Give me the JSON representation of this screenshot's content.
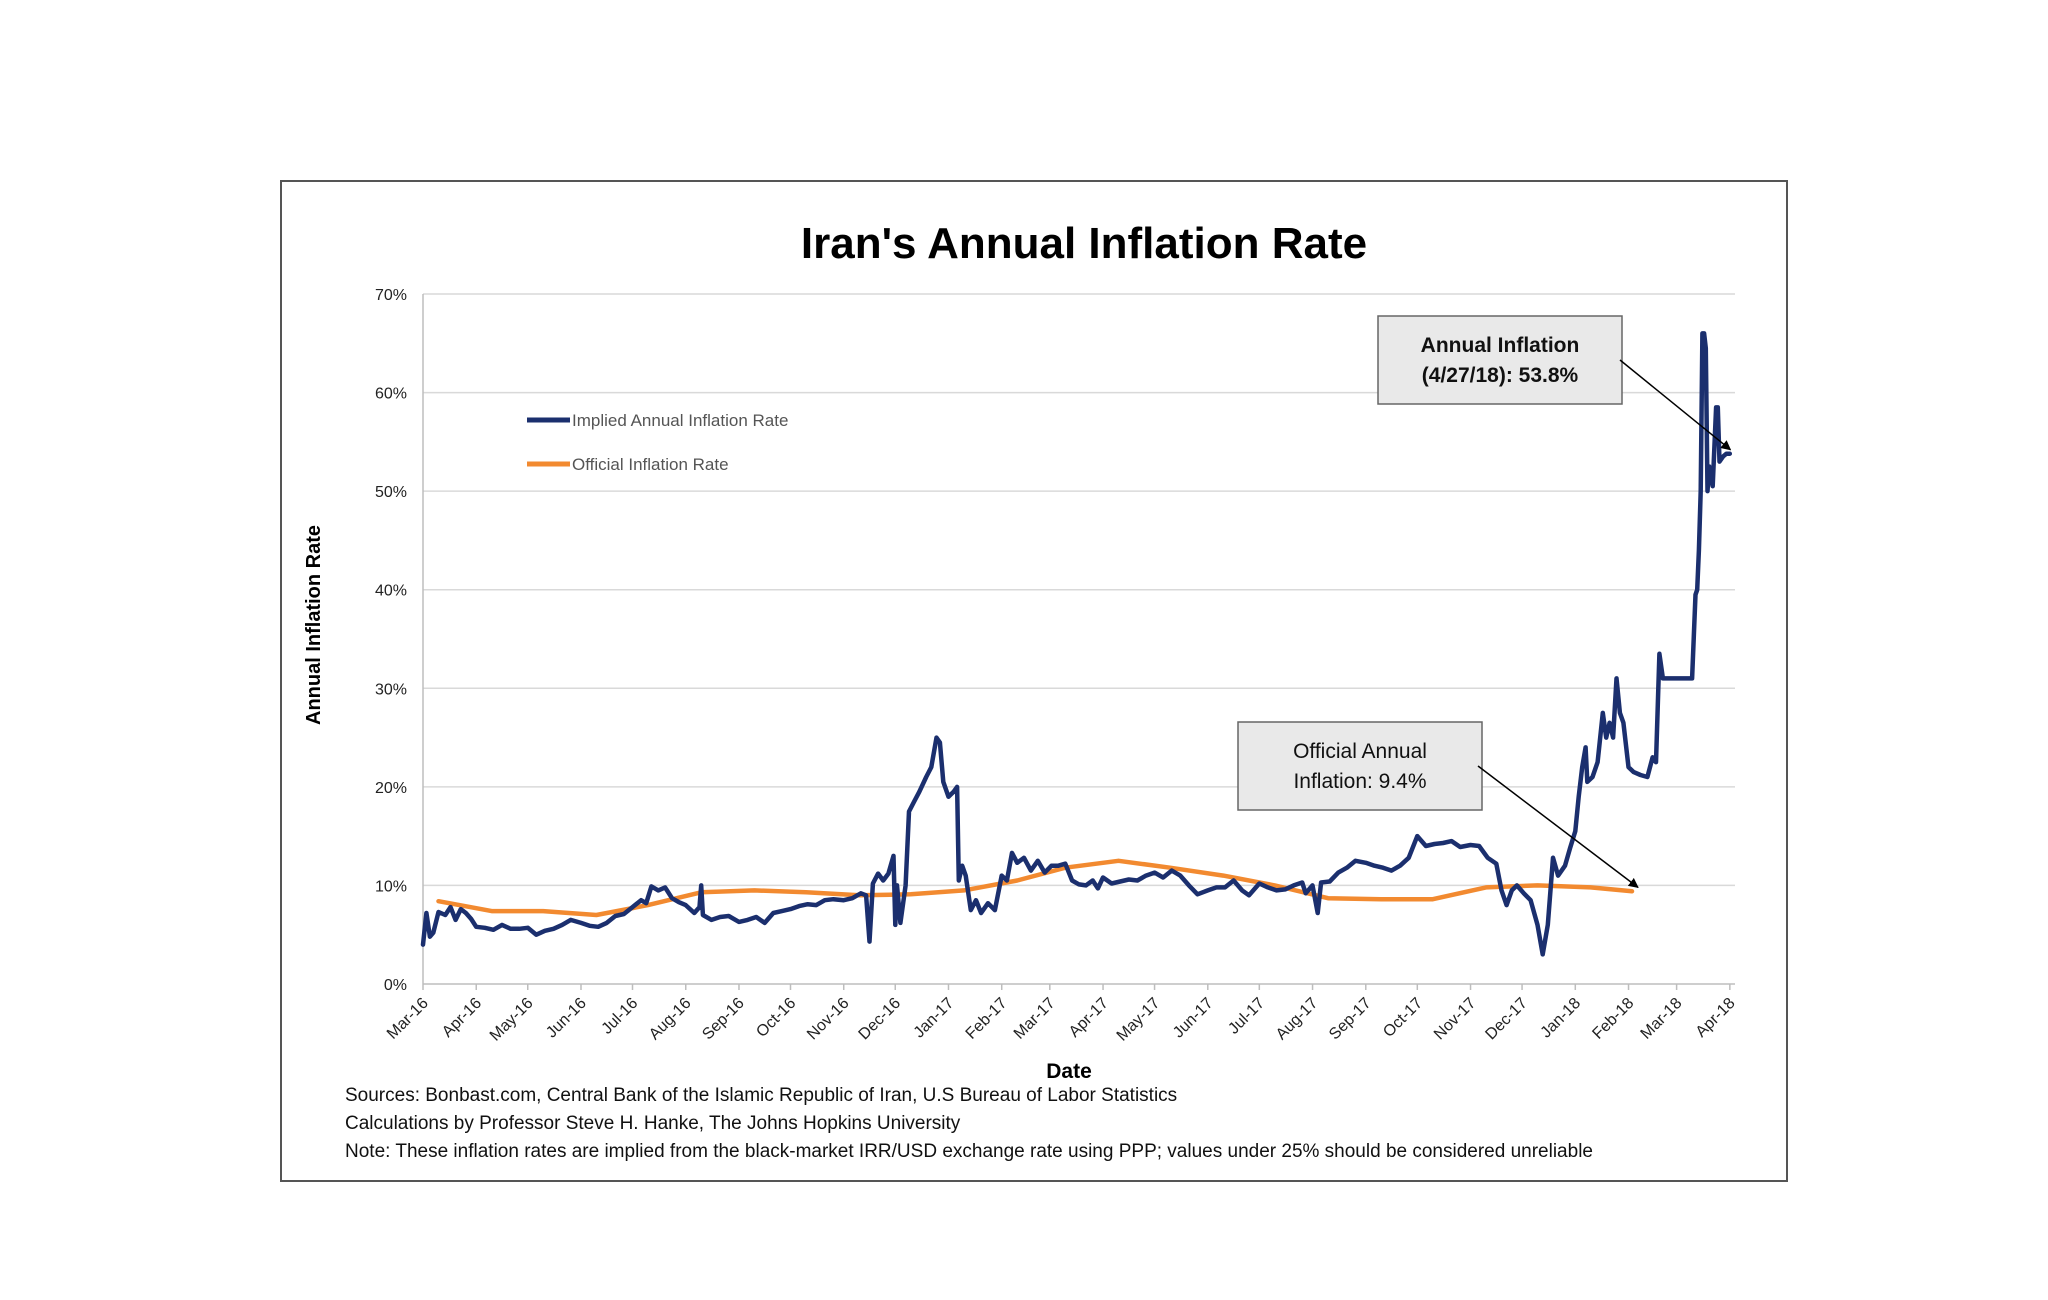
{
  "chart_data": {
    "type": "line",
    "title": "Iran's Annual Inflation Rate",
    "xlabel": "Date",
    "ylabel": "Annual Inflation Rate",
    "ylim": [
      0,
      70
    ],
    "y_ticks": [
      "0%",
      "10%",
      "20%",
      "30%",
      "40%",
      "50%",
      "60%",
      "70%"
    ],
    "x_ticks": [
      "Mar-16",
      "Apr-16",
      "May-16",
      "Jun-16",
      "Jul-16",
      "Aug-16",
      "Sep-16",
      "Oct-16",
      "Nov-16",
      "Dec-16",
      "Jan-17",
      "Feb-17",
      "Mar-17",
      "Apr-17",
      "May-17",
      "Jun-17",
      "Jul-17",
      "Aug-17",
      "Sep-17",
      "Oct-17",
      "Nov-17",
      "Dec-17",
      "Jan-18",
      "Feb-18",
      "Mar-18",
      "Apr-18"
    ],
    "grid": "horizontal",
    "legend_position": "top-left",
    "colors": {
      "implied": "#1b2f6e",
      "official": "#f28a30"
    },
    "series": [
      {
        "name": "Implied Annual Inflation Rate",
        "points": [
          [
            "2016-03-01",
            4.0
          ],
          [
            "2016-03-03",
            7.2
          ],
          [
            "2016-03-05",
            4.8
          ],
          [
            "2016-03-07",
            5.2
          ],
          [
            "2016-03-10",
            7.3
          ],
          [
            "2016-03-14",
            7.0
          ],
          [
            "2016-03-17",
            7.8
          ],
          [
            "2016-03-20",
            6.5
          ],
          [
            "2016-03-23",
            7.6
          ],
          [
            "2016-03-26",
            7.2
          ],
          [
            "2016-03-29",
            6.6
          ],
          [
            "2016-04-01",
            5.8
          ],
          [
            "2016-04-06",
            5.7
          ],
          [
            "2016-04-11",
            5.5
          ],
          [
            "2016-04-16",
            6.0
          ],
          [
            "2016-04-21",
            5.6
          ],
          [
            "2016-04-26",
            5.6
          ],
          [
            "2016-05-01",
            5.7
          ],
          [
            "2016-05-06",
            5.0
          ],
          [
            "2016-05-11",
            5.4
          ],
          [
            "2016-05-16",
            5.6
          ],
          [
            "2016-05-21",
            6.0
          ],
          [
            "2016-05-26",
            6.5
          ],
          [
            "2016-06-01",
            6.2
          ],
          [
            "2016-06-06",
            5.9
          ],
          [
            "2016-06-11",
            5.8
          ],
          [
            "2016-06-16",
            6.2
          ],
          [
            "2016-06-21",
            6.9
          ],
          [
            "2016-06-26",
            7.1
          ],
          [
            "2016-07-01",
            7.8
          ],
          [
            "2016-07-06",
            8.5
          ],
          [
            "2016-07-09",
            8.2
          ],
          [
            "2016-07-12",
            9.9
          ],
          [
            "2016-07-16",
            9.5
          ],
          [
            "2016-07-20",
            9.8
          ],
          [
            "2016-07-24",
            8.7
          ],
          [
            "2016-07-28",
            8.3
          ],
          [
            "2016-08-01",
            8.0
          ],
          [
            "2016-08-06",
            7.2
          ],
          [
            "2016-08-09",
            7.8
          ],
          [
            "2016-08-10",
            10.0
          ],
          [
            "2016-08-11",
            7.0
          ],
          [
            "2016-08-16",
            6.5
          ],
          [
            "2016-08-21",
            6.8
          ],
          [
            "2016-08-26",
            6.9
          ],
          [
            "2016-09-01",
            6.3
          ],
          [
            "2016-09-06",
            6.5
          ],
          [
            "2016-09-11",
            6.8
          ],
          [
            "2016-09-16",
            6.2
          ],
          [
            "2016-09-21",
            7.2
          ],
          [
            "2016-09-26",
            7.4
          ],
          [
            "2016-10-01",
            7.6
          ],
          [
            "2016-10-06",
            7.9
          ],
          [
            "2016-10-11",
            8.1
          ],
          [
            "2016-10-16",
            8.0
          ],
          [
            "2016-10-21",
            8.5
          ],
          [
            "2016-10-26",
            8.6
          ],
          [
            "2016-11-01",
            8.5
          ],
          [
            "2016-11-06",
            8.7
          ],
          [
            "2016-11-11",
            9.2
          ],
          [
            "2016-11-14",
            9.0
          ],
          [
            "2016-11-16",
            4.3
          ],
          [
            "2016-11-18",
            10.2
          ],
          [
            "2016-11-21",
            11.2
          ],
          [
            "2016-11-24",
            10.5
          ],
          [
            "2016-11-27",
            11.2
          ],
          [
            "2016-11-30",
            13.0
          ],
          [
            "2016-12-01",
            6.0
          ],
          [
            "2016-12-02",
            10.0
          ],
          [
            "2016-12-04",
            6.2
          ],
          [
            "2016-12-07",
            10.0
          ],
          [
            "2016-12-09",
            17.5
          ],
          [
            "2016-12-12",
            18.5
          ],
          [
            "2016-12-15",
            19.5
          ],
          [
            "2016-12-19",
            21.0
          ],
          [
            "2016-12-22",
            22.0
          ],
          [
            "2016-12-25",
            25.0
          ],
          [
            "2016-12-27",
            24.5
          ],
          [
            "2016-12-29",
            20.5
          ],
          [
            "2017-01-01",
            19.0
          ],
          [
            "2017-01-04",
            19.5
          ],
          [
            "2017-01-06",
            20.0
          ],
          [
            "2017-01-07",
            10.5
          ],
          [
            "2017-01-09",
            12.0
          ],
          [
            "2017-01-11",
            11.0
          ],
          [
            "2017-01-14",
            7.5
          ],
          [
            "2017-01-17",
            8.5
          ],
          [
            "2017-01-20",
            7.2
          ],
          [
            "2017-01-24",
            8.2
          ],
          [
            "2017-01-28",
            7.5
          ],
          [
            "2017-02-01",
            11.0
          ],
          [
            "2017-02-04",
            10.5
          ],
          [
            "2017-02-07",
            13.3
          ],
          [
            "2017-02-10",
            12.3
          ],
          [
            "2017-02-14",
            12.8
          ],
          [
            "2017-02-18",
            11.5
          ],
          [
            "2017-02-22",
            12.5
          ],
          [
            "2017-02-26",
            11.3
          ],
          [
            "2017-03-02",
            12.0
          ],
          [
            "2017-03-06",
            12.0
          ],
          [
            "2017-03-10",
            12.2
          ],
          [
            "2017-03-14",
            10.5
          ],
          [
            "2017-03-18",
            10.1
          ],
          [
            "2017-03-22",
            10.0
          ],
          [
            "2017-03-26",
            10.5
          ],
          [
            "2017-03-29",
            9.7
          ],
          [
            "2017-04-01",
            10.8
          ],
          [
            "2017-04-06",
            10.2
          ],
          [
            "2017-04-11",
            10.4
          ],
          [
            "2017-04-16",
            10.6
          ],
          [
            "2017-04-21",
            10.5
          ],
          [
            "2017-04-26",
            11.0
          ],
          [
            "2017-05-01",
            11.3
          ],
          [
            "2017-05-06",
            10.8
          ],
          [
            "2017-05-11",
            11.5
          ],
          [
            "2017-05-16",
            11.0
          ],
          [
            "2017-05-21",
            10.0
          ],
          [
            "2017-05-26",
            9.1
          ],
          [
            "2017-06-01",
            9.5
          ],
          [
            "2017-06-06",
            9.8
          ],
          [
            "2017-06-11",
            9.8
          ],
          [
            "2017-06-16",
            10.5
          ],
          [
            "2017-06-21",
            9.5
          ],
          [
            "2017-06-25",
            9.0
          ],
          [
            "2017-07-01",
            10.2
          ],
          [
            "2017-07-06",
            9.8
          ],
          [
            "2017-07-11",
            9.5
          ],
          [
            "2017-07-16",
            9.6
          ],
          [
            "2017-07-21",
            10.0
          ],
          [
            "2017-07-26",
            10.3
          ],
          [
            "2017-07-28",
            9.2
          ],
          [
            "2017-08-01",
            10.0
          ],
          [
            "2017-08-04",
            7.2
          ],
          [
            "2017-08-06",
            10.3
          ],
          [
            "2017-08-11",
            10.4
          ],
          [
            "2017-08-16",
            11.3
          ],
          [
            "2017-08-21",
            11.8
          ],
          [
            "2017-08-26",
            12.5
          ],
          [
            "2017-09-01",
            12.3
          ],
          [
            "2017-09-06",
            12.0
          ],
          [
            "2017-09-11",
            11.8
          ],
          [
            "2017-09-16",
            11.5
          ],
          [
            "2017-09-21",
            12.0
          ],
          [
            "2017-09-26",
            12.8
          ],
          [
            "2017-10-01",
            15.0
          ],
          [
            "2017-10-06",
            14.0
          ],
          [
            "2017-10-11",
            14.2
          ],
          [
            "2017-10-16",
            14.3
          ],
          [
            "2017-10-21",
            14.5
          ],
          [
            "2017-10-26",
            13.9
          ],
          [
            "2017-11-01",
            14.1
          ],
          [
            "2017-11-06",
            14.0
          ],
          [
            "2017-11-11",
            12.8
          ],
          [
            "2017-11-16",
            12.2
          ],
          [
            "2017-11-19",
            9.5
          ],
          [
            "2017-11-22",
            8.0
          ],
          [
            "2017-11-25",
            9.5
          ],
          [
            "2017-11-28",
            10.0
          ],
          [
            "2017-12-02",
            9.2
          ],
          [
            "2017-12-06",
            8.5
          ],
          [
            "2017-12-10",
            6.0
          ],
          [
            "2017-12-13",
            3.0
          ],
          [
            "2017-12-16",
            6.0
          ],
          [
            "2017-12-19",
            12.8
          ],
          [
            "2017-12-22",
            11.0
          ],
          [
            "2017-12-26",
            12.0
          ],
          [
            "2017-12-29",
            13.8
          ],
          [
            "2018-01-01",
            15.5
          ],
          [
            "2018-01-03",
            19.0
          ],
          [
            "2018-01-05",
            22.0
          ],
          [
            "2018-01-07",
            24.0
          ],
          [
            "2018-01-08",
            20.5
          ],
          [
            "2018-01-11",
            21.0
          ],
          [
            "2018-01-14",
            22.5
          ],
          [
            "2018-01-17",
            27.5
          ],
          [
            "2018-01-19",
            25.0
          ],
          [
            "2018-01-21",
            26.5
          ],
          [
            "2018-01-23",
            25.0
          ],
          [
            "2018-01-25",
            31.0
          ],
          [
            "2018-01-27",
            27.5
          ],
          [
            "2018-01-29",
            26.5
          ],
          [
            "2018-02-01",
            22.0
          ],
          [
            "2018-02-04",
            21.5
          ],
          [
            "2018-02-08",
            21.2
          ],
          [
            "2018-02-12",
            21.0
          ],
          [
            "2018-02-15",
            23.0
          ],
          [
            "2018-02-17",
            22.5
          ],
          [
            "2018-02-19",
            33.5
          ],
          [
            "2018-02-21",
            31.0
          ],
          [
            "2018-02-25",
            31.0
          ],
          [
            "2018-03-01",
            31.0
          ],
          [
            "2018-03-06",
            31.0
          ],
          [
            "2018-03-10",
            31.0
          ],
          [
            "2018-03-12",
            39.5
          ],
          [
            "2018-03-13",
            40.0
          ],
          [
            "2018-03-14",
            44.0
          ],
          [
            "2018-03-15",
            50.0
          ],
          [
            "2018-03-16",
            66.0
          ],
          [
            "2018-03-17",
            66.0
          ],
          [
            "2018-03-18",
            64.5
          ],
          [
            "2018-03-19",
            50.0
          ],
          [
            "2018-03-20",
            52.5
          ],
          [
            "2018-03-22",
            50.5
          ],
          [
            "2018-03-24",
            58.5
          ],
          [
            "2018-03-25",
            58.5
          ],
          [
            "2018-03-26",
            53.0
          ],
          [
            "2018-03-28",
            53.5
          ],
          [
            "2018-03-30",
            53.8
          ],
          [
            "2018-04-01",
            53.8
          ]
        ]
      },
      {
        "name": "Official Inflation Rate",
        "points": [
          [
            "2016-03-10",
            8.4
          ],
          [
            "2016-04-10",
            7.4
          ],
          [
            "2016-05-10",
            7.4
          ],
          [
            "2016-06-10",
            7.0
          ],
          [
            "2016-07-10",
            8.0
          ],
          [
            "2016-08-10",
            9.3
          ],
          [
            "2016-09-10",
            9.5
          ],
          [
            "2016-10-10",
            9.3
          ],
          [
            "2016-11-10",
            9.0
          ],
          [
            "2016-12-10",
            9.1
          ],
          [
            "2017-01-10",
            9.5
          ],
          [
            "2017-02-10",
            10.5
          ],
          [
            "2017-03-10",
            11.8
          ],
          [
            "2017-04-10",
            12.5
          ],
          [
            "2017-05-10",
            11.8
          ],
          [
            "2017-06-10",
            11.0
          ],
          [
            "2017-07-10",
            10.0
          ],
          [
            "2017-08-10",
            8.7
          ],
          [
            "2017-09-10",
            8.6
          ],
          [
            "2017-10-10",
            8.6
          ],
          [
            "2017-11-10",
            9.8
          ],
          [
            "2017-12-10",
            10.0
          ],
          [
            "2018-01-10",
            9.8
          ],
          [
            "2018-02-03",
            9.4
          ]
        ]
      }
    ],
    "annotations": [
      {
        "id": "implied",
        "lines": [
          "Annual Inflation",
          "(4/27/18): 53.8%"
        ],
        "target": [
          "2018-03-30",
          53.8
        ]
      },
      {
        "id": "official",
        "lines": [
          "Official Annual",
          "Inflation: 9.4%"
        ],
        "target": [
          "2018-02-03",
          9.4
        ]
      }
    ]
  },
  "footer": {
    "sources": "Sources: Bonbast.com, Central Bank of the Islamic Republic of Iran, U.S Bureau of Labor Statistics",
    "calculations": "Calculations by Professor Steve H. Hanke, The Johns Hopkins University",
    "note": "Note: These inflation rates are implied from the black-market IRR/USD exchange rate using PPP; values under 25% should be considered unreliable"
  }
}
